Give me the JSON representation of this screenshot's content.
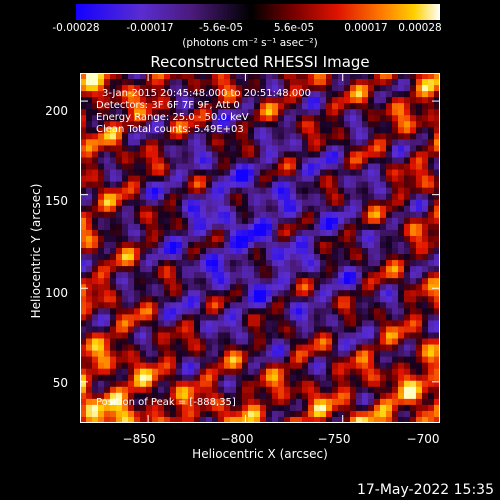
{
  "colorbar": {
    "tick_labels": [
      "-0.00028",
      "-0.00017",
      "-5.6e-05",
      "5.6e-05",
      "0.00017",
      "0.00028"
    ],
    "units": "(photons cm⁻² s⁻¹ asec⁻²)"
  },
  "chart_data": {
    "type": "heatmap",
    "title": "Reconstructed RHESSI Image",
    "xlabel": "Heliocentric X (arcsec)",
    "ylabel": "Heliocentric Y (arcsec)",
    "xlim": [
      -885,
      -700
    ],
    "ylim": [
      28,
      215
    ],
    "x_ticks": [
      -850,
      -800,
      -750,
      -700
    ],
    "y_ticks": [
      50,
      100,
      150,
      200
    ],
    "x_tick_labels": [
      "−850",
      "−800",
      "−750",
      "−700"
    ],
    "y_tick_labels": [
      "50",
      "100",
      "150",
      "200"
    ],
    "colorscale": "red-temperature",
    "zrange": [
      -0.00028,
      0.00028
    ],
    "annotations": {
      "time": "3-Jan-2015 20:45:48.000 to 20:51:48.000",
      "detectors": "Detectors: 3F 6F 7F 9F, Att 0",
      "energy": "Energy Range: 25.0 - 50.0 keV",
      "clean": "Clean     Total counts: 5.49E+03",
      "peak": "Position of Peak = [-888,35]"
    }
  },
  "footer": {
    "timestamp": "17-May-2022 15:35"
  }
}
